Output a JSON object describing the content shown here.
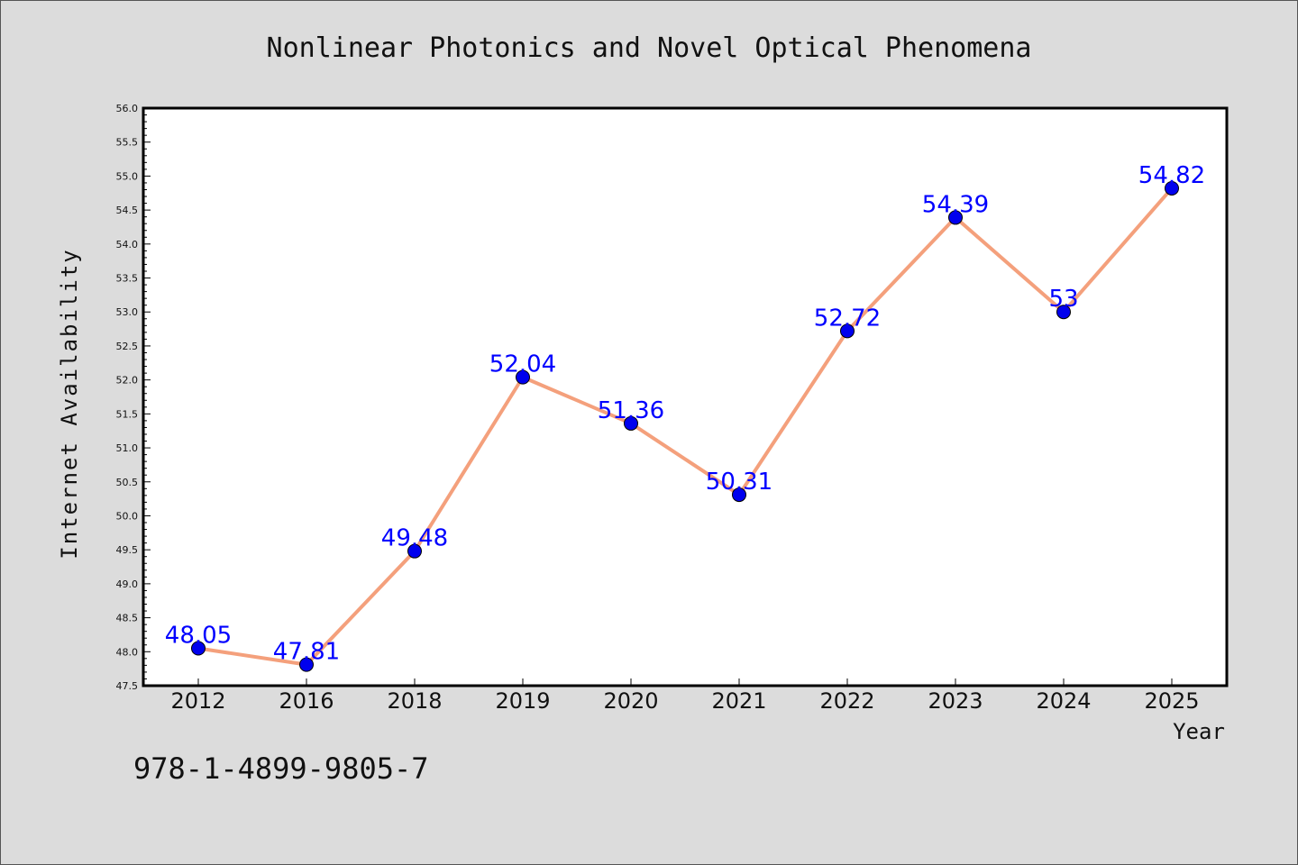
{
  "chart_data": {
    "type": "line",
    "title": "Nonlinear Photonics and Novel Optical Phenomena",
    "xlabel": "Year",
    "ylabel": "Internet Availability",
    "categories": [
      "2012",
      "2016",
      "2018",
      "2019",
      "2020",
      "2021",
      "2022",
      "2023",
      "2024",
      "2025"
    ],
    "series": [
      {
        "values": [
          48.05,
          47.81,
          49.48,
          52.04,
          51.36,
          50.31,
          52.72,
          54.39,
          53.0,
          54.82
        ],
        "labels": [
          "48.05",
          "47.81",
          "49.48",
          "52.04",
          "51.36",
          "50.31",
          "52.72",
          "54.39",
          "53",
          "54.82"
        ],
        "line_color": "#f4a07c",
        "marker_color": "#0000ee"
      }
    ],
    "ylim": [
      47.5,
      56.0
    ],
    "yticks": [
      "47.5",
      "48.0",
      "48.5",
      "49.0",
      "49.5",
      "50.0",
      "50.5",
      "51.0",
      "51.5",
      "52.0",
      "52.5",
      "53.0",
      "53.5",
      "54.0",
      "54.5",
      "55.0",
      "55.5",
      "56.0"
    ],
    "grid": false,
    "label_color": "#0000ff"
  },
  "footer": {
    "isbn": "978-1-4899-9805-7"
  }
}
